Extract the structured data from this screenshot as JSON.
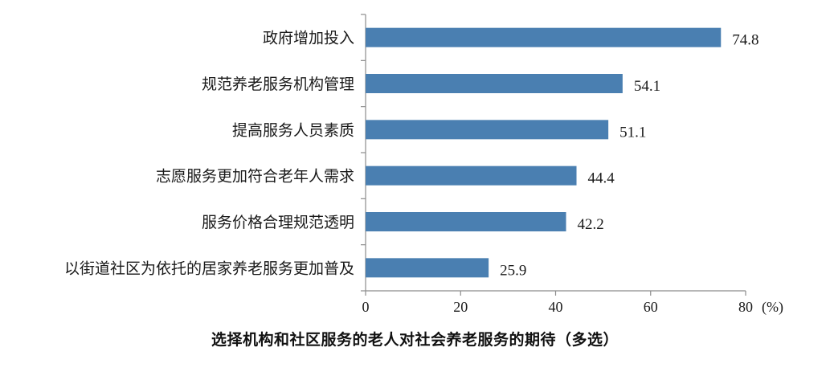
{
  "chart_data": {
    "type": "bar",
    "orientation": "horizontal",
    "title": "选择机构和社区服务的老人对社会养老服务的期待（多选）",
    "unit": "(%)",
    "categories": [
      "政府增加投入",
      "规范养老服务机构管理",
      "提高服务人员素质",
      "志愿服务更加符合老年人需求",
      "服务价格合理规范透明",
      "以街道社区为依托的居家养老服务更加普及"
    ],
    "values": [
      74.8,
      54.1,
      51.1,
      44.4,
      42.2,
      25.9
    ],
    "value_labels": [
      "74.8",
      "54.1",
      "51.1",
      "44.4",
      "42.2",
      "25.9"
    ],
    "xlim": [
      0,
      80
    ],
    "xticks": [
      0,
      20,
      40,
      60,
      80
    ],
    "xtick_labels": [
      "0",
      "20",
      "40",
      "60",
      "80"
    ],
    "grid": false,
    "legend": "none",
    "bar_color": "#4a7fb1"
  }
}
